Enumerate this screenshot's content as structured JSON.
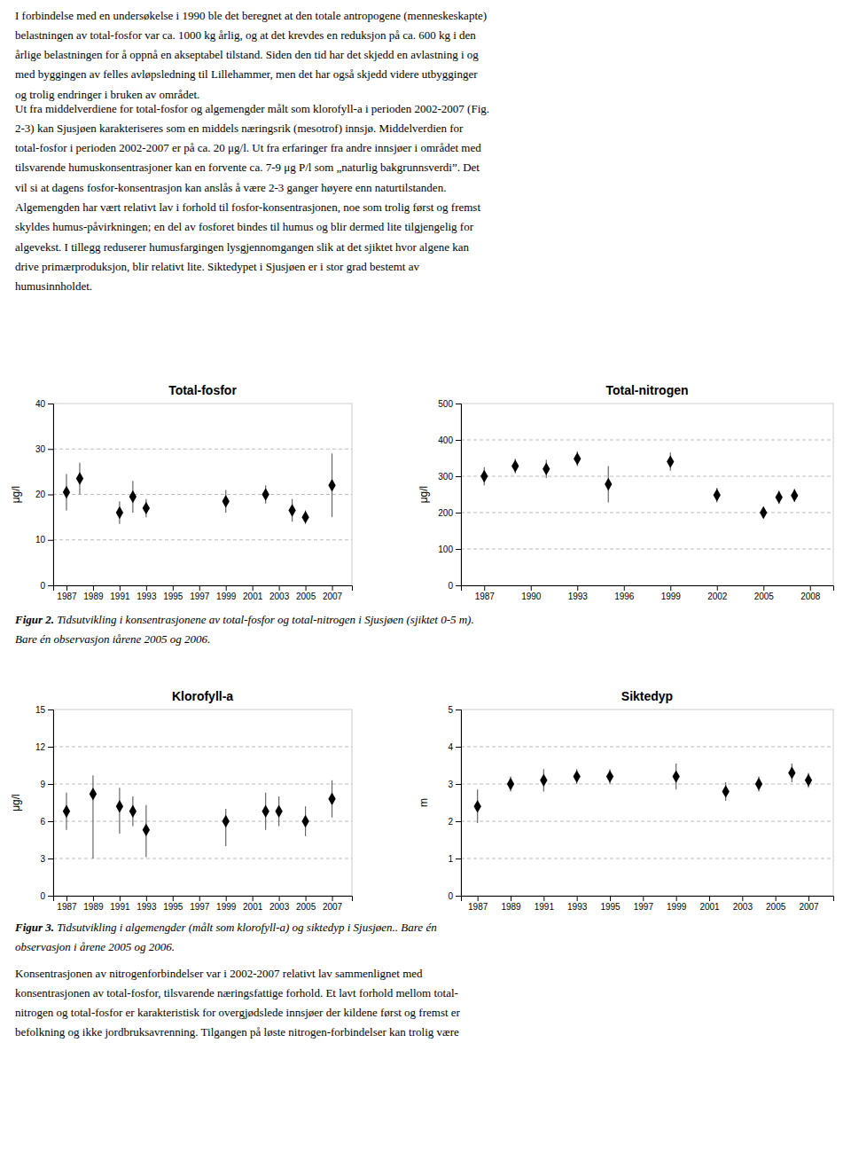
{
  "page_text_top": [
    "I forbindelse med en undersøkelse i 1990 ble det beregnet at den totale antropogene (menneskeskapte)",
    "belastningen av total-fosfor var ca. 1000 kg årlig, og at det krevdes en reduksjon på ca. 600 kg i den",
    "årlige belastningen for å oppnå en akseptabel tilstand. Siden den tid har det skjedd en avlastning i og",
    "med byggingen av felles avløpsledning til Lillehammer, men det har også skjedd videre utbygginger",
    "og trolig endringer i bruken av området."
  ],
  "paragraph2": [
    "Ut fra middelverdiene for total-fosfor og algemengder målt som klorofyll-a i perioden 2002-2007 (Fig.",
    "2-3) kan Sjusjøen karakteriseres som en middels næringsrik (mesotrof) innsjø. Middelverdien for",
    "total-fosfor i perioden 2002-2007 er på ca. 20 μg/l. Ut fra erfaringer fra andre innsjøer i området med",
    "tilsvarende humuskonsentrasjoner kan en forvente ca. 7-9 μg P/l som „naturlig bakgrunnsverdi”. Det",
    "vil si at dagens fosfor-konsentrasjon kan anslås å være 2-3 ganger høyere enn naturtilstanden.",
    "Algemengden har vært relativt lav i forhold til fosfor-konsentrasjonen, noe som trolig først og fremst",
    "skyldes humus-påvirkningen; en del av fosforet bindes til humus og blir dermed lite tilgjengelig for",
    "algevekst. I tillegg reduserer humusfargingen lysgjennomgangen slik at det sjiktet hvor algene kan",
    "drive primærproduksjon, blir relativt lite. Siktedypet i Sjusjøen er i stor grad bestemt av",
    "humusinnholdet."
  ],
  "fig2_caption_bold": "Figur 2.",
  "fig2_caption_italic": " Tidsutvikling i konsentrasjonene av total-fosfor og total-nitrogen i Sjusjøen (sjiktet 0-5 m).",
  "fig2_caption_line2": "Bare én observasjon iårene 2005 og 2006.",
  "fig3_caption_bold": "Figur 3.",
  "fig3_caption_italic": " Tidsutvikling i algemengder (målt som klorofyll-a) og siktedyp i Sjusjøen.. Bare én",
  "fig3_caption_line2": "observasjon i årene 2005 og 2006.",
  "page_text_bottom": [
    "Konsentrasjonen av nitrogenforbindelser var i 2002-2007 relativt lav sammenlignet med",
    "konsentrasjonen av total-fosfor, tilsvarende næringsfattige forhold. Et lavt forhold mellom total-",
    "nitrogen og total-fosfor er karakteristisk for overgjødslede innsjøer der kildene først og fremst er",
    "befolkning og ikke jordbruksavrenning. Tilgangen på løste nitrogen-forbindelser kan trolig være"
  ],
  "chart_data": [
    {
      "type": "scatter",
      "title": "Total-fosfor",
      "ylabel": "μg/l",
      "x": [
        1987,
        1988,
        1991,
        1992,
        1993,
        1999,
        2002,
        2004,
        2005,
        2007
      ],
      "values": [
        20.5,
        23.5,
        16.0,
        19.5,
        17.0,
        18.5,
        20.0,
        16.5,
        15.0,
        22.0
      ],
      "error_minus": [
        4.0,
        3.5,
        2.5,
        3.5,
        2.0,
        2.5,
        2.0,
        2.5,
        1.5,
        7.0
      ],
      "error_plus": [
        4.0,
        3.5,
        2.5,
        3.5,
        2.0,
        2.5,
        2.0,
        2.5,
        1.5,
        7.0
      ],
      "xlim": [
        1986,
        2008.5
      ],
      "ylim": [
        0,
        40
      ],
      "xticks": [
        1987,
        1989,
        1991,
        1993,
        1995,
        1997,
        1999,
        2001,
        2003,
        2005,
        2007
      ],
      "yticks": [
        0,
        10,
        20,
        30,
        40
      ],
      "grid": true,
      "marker": "diamond",
      "color": "#000000"
    },
    {
      "type": "scatter",
      "title": "Total-nitrogen",
      "ylabel": "μg/l",
      "x": [
        1987,
        1989,
        1991,
        1993,
        1995,
        1999,
        2002,
        2005,
        2006,
        2007
      ],
      "values": [
        300,
        328,
        320,
        348,
        278,
        340,
        248,
        200,
        242,
        247
      ],
      "error_minus": [
        25,
        20,
        25,
        20,
        50,
        25,
        20,
        15,
        18,
        18
      ],
      "error_plus": [
        25,
        20,
        25,
        20,
        50,
        25,
        20,
        15,
        18,
        18
      ],
      "xlim": [
        1985.5,
        2009.5
      ],
      "ylim": [
        0,
        500
      ],
      "xticks": [
        1987,
        1990,
        1993,
        1996,
        1999,
        2002,
        2005,
        2008
      ],
      "yticks": [
        0,
        100,
        200,
        300,
        400,
        500
      ],
      "grid": true,
      "marker": "diamond",
      "color": "#000000"
    },
    {
      "type": "scatter",
      "title": "Klorofyll-a",
      "ylabel": "μg/l",
      "x": [
        1987,
        1989,
        1991,
        1992,
        1993,
        1999,
        2002,
        2003,
        2005,
        2007
      ],
      "values": [
        6.8,
        8.2,
        7.2,
        6.8,
        5.3,
        6.0,
        6.8,
        6.8,
        6.0,
        7.8
      ],
      "error_minus": [
        1.5,
        5.2,
        2.2,
        1.2,
        2.2,
        2.0,
        1.5,
        1.2,
        1.2,
        1.5
      ],
      "error_plus": [
        1.5,
        1.5,
        1.5,
        1.2,
        2.0,
        1.0,
        1.5,
        1.2,
        1.2,
        1.5
      ],
      "xlim": [
        1986,
        2008.5
      ],
      "ylim": [
        0,
        15
      ],
      "xticks": [
        1987,
        1989,
        1991,
        1993,
        1995,
        1997,
        1999,
        2001,
        2003,
        2005,
        2007
      ],
      "yticks": [
        0,
        3,
        6,
        9,
        12,
        15
      ],
      "grid": true,
      "marker": "diamond",
      "color": "#000000"
    },
    {
      "type": "scatter",
      "title": "Siktedyp",
      "ylabel": "m",
      "x": [
        1987,
        1989,
        1991,
        1993,
        1995,
        1999,
        2002,
        2004,
        2006,
        2007
      ],
      "values": [
        2.4,
        3.0,
        3.1,
        3.2,
        3.2,
        3.2,
        2.8,
        3.0,
        3.3,
        3.1
      ],
      "error_minus": [
        0.45,
        0.2,
        0.3,
        0.2,
        0.2,
        0.35,
        0.25,
        0.2,
        0.25,
        0.2
      ],
      "error_plus": [
        0.45,
        0.2,
        0.3,
        0.2,
        0.2,
        0.35,
        0.25,
        0.2,
        0.25,
        0.2
      ],
      "xlim": [
        1986,
        2008.5
      ],
      "ylim": [
        0,
        5
      ],
      "xticks": [
        1987,
        1989,
        1991,
        1993,
        1995,
        1997,
        1999,
        2001,
        2003,
        2005,
        2007
      ],
      "yticks": [
        0,
        1,
        2,
        3,
        4,
        5
      ],
      "grid": true,
      "marker": "diamond",
      "color": "#000000"
    }
  ]
}
